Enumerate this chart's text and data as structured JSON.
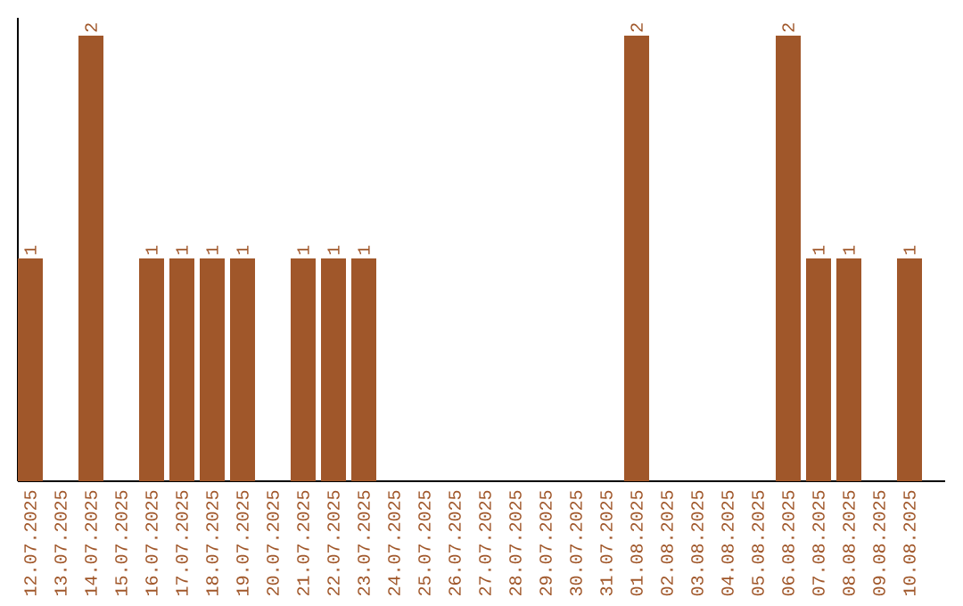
{
  "chart_data": {
    "type": "bar",
    "categories": [
      "12.07.2025",
      "13.07.2025",
      "14.07.2025",
      "15.07.2025",
      "16.07.2025",
      "17.07.2025",
      "18.07.2025",
      "19.07.2025",
      "20.07.2025",
      "21.07.2025",
      "22.07.2025",
      "23.07.2025",
      "24.07.2025",
      "25.07.2025",
      "26.07.2025",
      "27.07.2025",
      "28.07.2025",
      "29.07.2025",
      "30.07.2025",
      "31.07.2025",
      "01.08.2025",
      "02.08.2025",
      "03.08.2025",
      "04.08.2025",
      "05.08.2025",
      "06.08.2025",
      "07.08.2025",
      "08.08.2025",
      "09.08.2025",
      "10.08.2025"
    ],
    "values": [
      1,
      0,
      2,
      0,
      1,
      1,
      1,
      1,
      0,
      1,
      1,
      1,
      0,
      0,
      0,
      0,
      0,
      0,
      0,
      0,
      2,
      0,
      0,
      0,
      0,
      2,
      1,
      1,
      0,
      1
    ],
    "value_labels": [
      "1",
      null,
      "2",
      null,
      "1",
      "1",
      "1",
      "1",
      null,
      "1",
      "1",
      "1",
      null,
      null,
      null,
      null,
      null,
      null,
      null,
      null,
      "2",
      null,
      null,
      null,
      null,
      "2",
      "1",
      "1",
      null,
      "1"
    ],
    "color": "#a0572a",
    "tick_labels": "x"
  }
}
